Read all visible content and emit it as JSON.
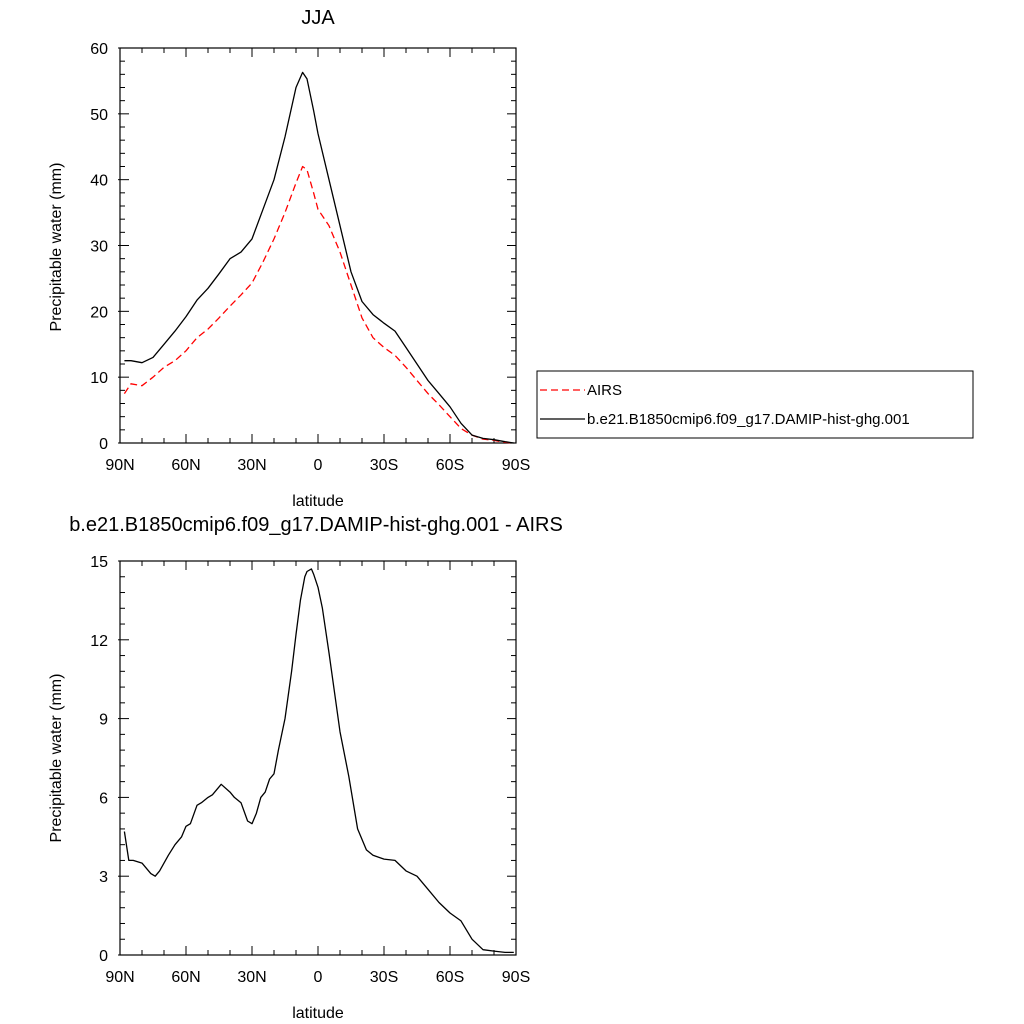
{
  "chart_data": [
    {
      "type": "line",
      "title": "JJA",
      "xlabel": "latitude",
      "ylabel": "Precipitable water (mm)",
      "xlim": [
        90,
        -90
      ],
      "ylim": [
        0,
        60
      ],
      "x_ticks": [
        {
          "value": 90,
          "label": "90N"
        },
        {
          "value": 60,
          "label": "60N"
        },
        {
          "value": 30,
          "label": "30N"
        },
        {
          "value": 0,
          "label": "0"
        },
        {
          "value": -30,
          "label": "30S"
        },
        {
          "value": -60,
          "label": "60S"
        },
        {
          "value": -90,
          "label": "90S"
        }
      ],
      "y_ticks": [
        {
          "value": 0,
          "label": "0"
        },
        {
          "value": 10,
          "label": "10"
        },
        {
          "value": 20,
          "label": "20"
        },
        {
          "value": 30,
          "label": "30"
        },
        {
          "value": 40,
          "label": "40"
        },
        {
          "value": 50,
          "label": "50"
        },
        {
          "value": 60,
          "label": "60"
        }
      ],
      "legend_position": "right",
      "series": [
        {
          "name": "AIRS",
          "color": "#ff0000",
          "dash": "dashed",
          "x": [
            88,
            85,
            80,
            75,
            70,
            65,
            60,
            55,
            50,
            45,
            40,
            35,
            30,
            25,
            20,
            15,
            10,
            7,
            5,
            2,
            0,
            -5,
            -10,
            -15,
            -20,
            -25,
            -30,
            -35,
            -40,
            -45,
            -50,
            -55,
            -60,
            -65,
            -70,
            -75,
            -80,
            -85,
            -89
          ],
          "y": [
            7.5,
            9.0,
            8.7,
            10.0,
            11.5,
            12.5,
            14.0,
            16.0,
            17.3,
            19.0,
            20.8,
            22.5,
            24.3,
            27.5,
            31.0,
            35.0,
            39.5,
            42.0,
            41.5,
            38.0,
            35.5,
            33.0,
            29.0,
            24.0,
            19.0,
            16.0,
            14.5,
            13.3,
            11.5,
            9.5,
            7.5,
            5.8,
            4.0,
            2.2,
            1.2,
            0.6,
            0.4,
            0.1,
            0.0
          ]
        },
        {
          "name": "b.e21.B1850cmip6.f09_g17.DAMIP-hist-ghg.001",
          "color": "#000000",
          "dash": "solid",
          "x": [
            88,
            85,
            80,
            75,
            70,
            65,
            60,
            55,
            50,
            45,
            40,
            35,
            30,
            25,
            20,
            15,
            10,
            7,
            5,
            2,
            0,
            -5,
            -10,
            -15,
            -20,
            -25,
            -30,
            -35,
            -40,
            -45,
            -50,
            -55,
            -60,
            -65,
            -70,
            -75,
            -80,
            -85,
            -89
          ],
          "y": [
            12.5,
            12.5,
            12.2,
            13.0,
            15.0,
            17.0,
            19.2,
            21.7,
            23.5,
            25.7,
            28.0,
            29.0,
            31.0,
            35.5,
            40.0,
            46.5,
            54.0,
            56.3,
            55.3,
            50.5,
            47.0,
            40.0,
            33.0,
            26.0,
            21.5,
            19.5,
            18.2,
            17.0,
            14.5,
            12.0,
            9.5,
            7.5,
            5.5,
            3.0,
            1.2,
            0.7,
            0.5,
            0.2,
            0.0
          ]
        }
      ]
    },
    {
      "type": "line",
      "title": "b.e21.B1850cmip6.f09_g17.DAMIP-hist-ghg.001 - AIRS",
      "xlabel": "latitude",
      "ylabel": "Precipitable water (mm)",
      "xlim": [
        90,
        -90
      ],
      "ylim": [
        0,
        15
      ],
      "x_ticks": [
        {
          "value": 90,
          "label": "90N"
        },
        {
          "value": 60,
          "label": "60N"
        },
        {
          "value": 30,
          "label": "30N"
        },
        {
          "value": 0,
          "label": "0"
        },
        {
          "value": -30,
          "label": "30S"
        },
        {
          "value": -60,
          "label": "60S"
        },
        {
          "value": -90,
          "label": "90S"
        }
      ],
      "y_ticks": [
        {
          "value": 0,
          "label": "0"
        },
        {
          "value": 3,
          "label": "3"
        },
        {
          "value": 6,
          "label": "6"
        },
        {
          "value": 9,
          "label": "9"
        },
        {
          "value": 12,
          "label": "12"
        },
        {
          "value": 15,
          "label": "15"
        }
      ],
      "series": [
        {
          "color": "#000000",
          "dash": "solid",
          "x": [
            88,
            86,
            84,
            80,
            76,
            74,
            72,
            68,
            65,
            62,
            60,
            58,
            55,
            53,
            50,
            48,
            44,
            40,
            38,
            35,
            32,
            30,
            28,
            26,
            24,
            22,
            20,
            18,
            15,
            12,
            10,
            8,
            6,
            5,
            3,
            2,
            0,
            -2,
            -5,
            -10,
            -14,
            -18,
            -22,
            -25,
            -30,
            -35,
            -40,
            -45,
            -50,
            -55,
            -60,
            -65,
            -70,
            -75,
            -80,
            -85,
            -89
          ],
          "y": [
            4.7,
            3.6,
            3.6,
            3.5,
            3.1,
            3.0,
            3.2,
            3.8,
            4.2,
            4.5,
            4.9,
            5.0,
            5.7,
            5.8,
            6.0,
            6.1,
            6.5,
            6.2,
            6.0,
            5.8,
            5.1,
            5.0,
            5.4,
            6.0,
            6.2,
            6.7,
            6.9,
            7.8,
            9.0,
            10.8,
            12.2,
            13.5,
            14.4,
            14.6,
            14.7,
            14.5,
            14.0,
            13.2,
            11.5,
            8.5,
            6.8,
            4.8,
            4.0,
            3.8,
            3.65,
            3.6,
            3.2,
            3.0,
            2.5,
            2.0,
            1.6,
            1.3,
            0.6,
            0.2,
            0.15,
            0.1,
            0.1
          ]
        }
      ]
    }
  ]
}
